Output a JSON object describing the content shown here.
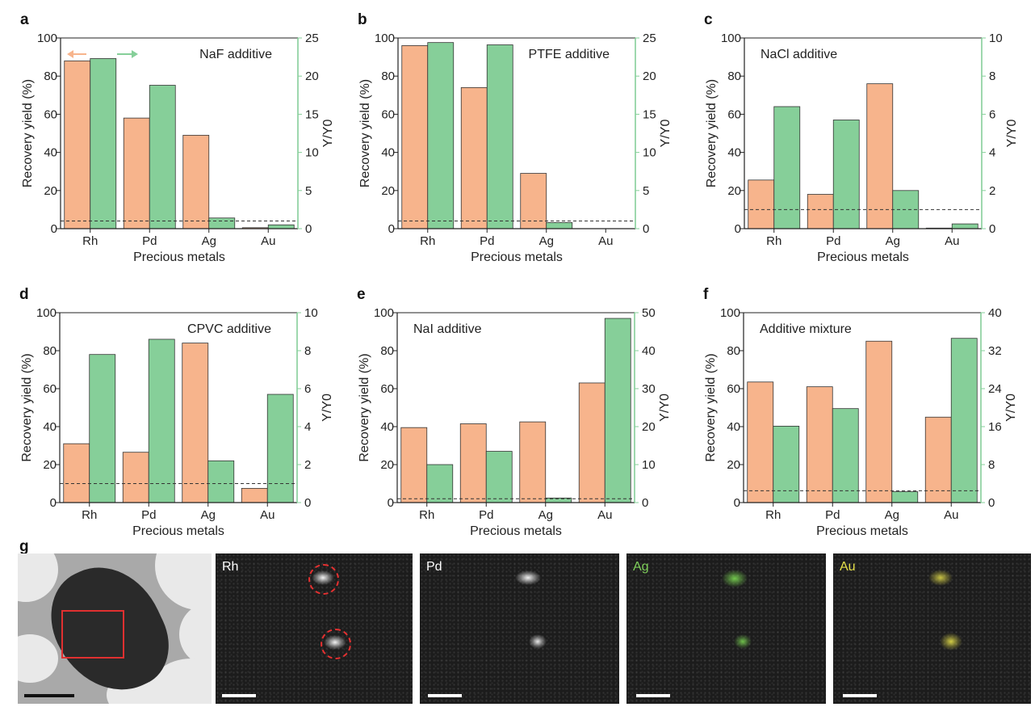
{
  "colors": {
    "recovery": "#f7b48c",
    "yratio": "#86cf99",
    "edge": "#333333",
    "ag_label": "#7fd05a",
    "au_label": "#e6e04a",
    "red": "#e03030"
  },
  "chart_data": [
    {
      "panel": "a",
      "type": "bar",
      "annotation": "NaF additive",
      "categories": [
        "Rh",
        "Pd",
        "Ag",
        "Au"
      ],
      "xlabel": "Precious metals",
      "ylabel": "Recovery yield (%)",
      "y2label": "Y/Y0",
      "ylim": [
        0,
        100
      ],
      "y2lim": [
        0,
        25
      ],
      "yticks": [
        0,
        20,
        40,
        60,
        80,
        100
      ],
      "y2ticks": [
        0,
        5,
        10,
        15,
        20,
        25
      ],
      "series": [
        {
          "values": [
            88,
            58,
            49,
            0.5
          ],
          "axis": "left"
        },
        {
          "values": [
            22.3,
            18.8,
            1.4,
            0.5
          ],
          "axis": "right"
        }
      ],
      "reference_line": 1,
      "direction_arrows": true
    },
    {
      "panel": "b",
      "type": "bar",
      "annotation": "PTFE additive",
      "categories": [
        "Rh",
        "Pd",
        "Ag",
        "Au"
      ],
      "xlabel": "Precious metals",
      "ylabel": "Recovery yield (%)",
      "y2label": "Y/Y0",
      "ylim": [
        0,
        100
      ],
      "y2lim": [
        0,
        25
      ],
      "yticks": [
        0,
        20,
        40,
        60,
        80,
        100
      ],
      "y2ticks": [
        0,
        5,
        10,
        15,
        20,
        25
      ],
      "series": [
        {
          "values": [
            96,
            74,
            29,
            0
          ],
          "axis": "left"
        },
        {
          "values": [
            24.4,
            24.1,
            0.8,
            0
          ],
          "axis": "right"
        }
      ],
      "reference_line": 1
    },
    {
      "panel": "c",
      "type": "bar",
      "annotation": "NaCl additive",
      "categories": [
        "Rh",
        "Pd",
        "Ag",
        "Au"
      ],
      "xlabel": "Precious metals",
      "ylabel": "Recovery yield (%)",
      "y2label": "Y/Y0",
      "ylim": [
        0,
        100
      ],
      "y2lim": [
        0,
        10
      ],
      "yticks": [
        0,
        20,
        40,
        60,
        80,
        100
      ],
      "y2ticks": [
        0,
        2,
        4,
        6,
        8,
        10
      ],
      "series": [
        {
          "values": [
            25.5,
            18,
            76,
            0.3
          ],
          "axis": "left"
        },
        {
          "values": [
            6.4,
            5.7,
            2.0,
            0.25
          ],
          "axis": "right"
        }
      ],
      "reference_line": 1
    },
    {
      "panel": "d",
      "type": "bar",
      "annotation": "CPVC additive",
      "categories": [
        "Rh",
        "Pd",
        "Ag",
        "Au"
      ],
      "xlabel": "Precious metals",
      "ylabel": "Recovery yield (%)",
      "y2label": "Y/Y0",
      "ylim": [
        0,
        100
      ],
      "y2lim": [
        0,
        10
      ],
      "yticks": [
        0,
        20,
        40,
        60,
        80,
        100
      ],
      "y2ticks": [
        0,
        2,
        4,
        6,
        8,
        10
      ],
      "series": [
        {
          "values": [
            31,
            26.5,
            84,
            7.5
          ],
          "axis": "left"
        },
        {
          "values": [
            7.8,
            8.6,
            2.2,
            5.7
          ],
          "axis": "right"
        }
      ],
      "reference_line": 1
    },
    {
      "panel": "e",
      "type": "bar",
      "annotation": "NaI additive",
      "categories": [
        "Rh",
        "Pd",
        "Ag",
        "Au"
      ],
      "xlabel": "Precious metals",
      "ylabel": "Recovery yield (%)",
      "y2label": "Y/Y0",
      "ylim": [
        0,
        100
      ],
      "y2lim": [
        0,
        50
      ],
      "yticks": [
        0,
        20,
        40,
        60,
        80,
        100
      ],
      "y2ticks": [
        0,
        10,
        20,
        30,
        40,
        50
      ],
      "series": [
        {
          "values": [
            39.5,
            41.5,
            42.5,
            63
          ],
          "axis": "left"
        },
        {
          "values": [
            10,
            13.5,
            1.2,
            48.5
          ],
          "axis": "right"
        }
      ],
      "reference_line": 1
    },
    {
      "panel": "f",
      "type": "bar",
      "annotation": "Additive mixture",
      "categories": [
        "Rh",
        "Pd",
        "Ag",
        "Au"
      ],
      "xlabel": "Precious metals",
      "ylabel": "Recovery yield (%)",
      "y2label": "Y/Y0",
      "ylim": [
        0,
        100
      ],
      "y2lim": [
        0,
        40
      ],
      "yticks": [
        0,
        20,
        40,
        60,
        80,
        100
      ],
      "y2ticks": [
        0,
        8,
        16,
        24,
        32,
        40
      ],
      "series": [
        {
          "values": [
            63.5,
            61,
            85,
            45
          ],
          "axis": "left"
        },
        {
          "values": [
            16.1,
            19.8,
            2.3,
            34.6
          ],
          "axis": "right"
        }
      ],
      "reference_line": 2.5
    }
  ],
  "images": {
    "panel_letter": "g",
    "maps": [
      {
        "id": "rh",
        "label": "Rh"
      },
      {
        "id": "pd",
        "label": "Pd"
      },
      {
        "id": "ag",
        "label": "Ag"
      },
      {
        "id": "au",
        "label": "Au"
      }
    ]
  }
}
